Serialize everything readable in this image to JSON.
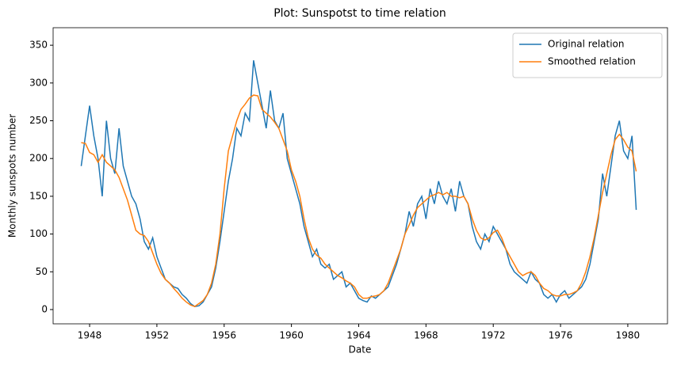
{
  "chart_data": {
    "type": "line",
    "title": "Plot: Sunspotst to time relation",
    "x_label": "Date",
    "y_label": "Monthly sunspots number",
    "x": [
      1947.5,
      1947.75,
      1948,
      1948.25,
      1948.5,
      1948.75,
      1949,
      1949.25,
      1949.5,
      1949.75,
      1950,
      1950.25,
      1950.5,
      1950.75,
      1951,
      1951.25,
      1951.5,
      1951.75,
      1952,
      1952.25,
      1952.5,
      1952.75,
      1953,
      1953.25,
      1953.5,
      1953.75,
      1954,
      1954.25,
      1954.5,
      1954.75,
      1955,
      1955.25,
      1955.5,
      1955.75,
      1956,
      1956.25,
      1956.5,
      1956.75,
      1957,
      1957.25,
      1957.5,
      1957.75,
      1958,
      1958.25,
      1958.5,
      1958.75,
      1959,
      1959.25,
      1959.5,
      1959.75,
      1960,
      1960.25,
      1960.5,
      1960.75,
      1961,
      1961.25,
      1961.5,
      1961.75,
      1962,
      1962.25,
      1962.5,
      1962.75,
      1963,
      1963.25,
      1963.5,
      1963.75,
      1964,
      1964.25,
      1964.5,
      1964.75,
      1965,
      1965.25,
      1965.5,
      1965.75,
      1966,
      1966.25,
      1966.5,
      1966.75,
      1967,
      1967.25,
      1967.5,
      1967.75,
      1968,
      1968.25,
      1968.5,
      1968.75,
      1969,
      1969.25,
      1969.5,
      1969.75,
      1970,
      1970.25,
      1970.5,
      1970.75,
      1971,
      1971.25,
      1971.5,
      1971.75,
      1972,
      1972.25,
      1972.5,
      1972.75,
      1973,
      1973.25,
      1973.5,
      1973.75,
      1974,
      1974.25,
      1974.5,
      1974.75,
      1975,
      1975.25,
      1975.5,
      1975.75,
      1976,
      1976.25,
      1976.5,
      1976.75,
      1977,
      1977.25,
      1977.5,
      1977.75,
      1978,
      1978.25,
      1978.5,
      1978.75,
      1979,
      1979.25,
      1979.5,
      1979.75,
      1980,
      1980.25,
      1980.5
    ],
    "series": [
      {
        "name": "Original relation",
        "color": "#1f77b4",
        "values": [
          190,
          230,
          270,
          230,
          200,
          150,
          250,
          200,
          180,
          240,
          190,
          170,
          150,
          140,
          120,
          90,
          80,
          95,
          70,
          55,
          40,
          35,
          30,
          28,
          20,
          15,
          8,
          4,
          5,
          10,
          20,
          30,
          55,
          90,
          130,
          170,
          200,
          240,
          230,
          260,
          250,
          330,
          300,
          270,
          240,
          290,
          250,
          240,
          260,
          200,
          180,
          160,
          140,
          110,
          90,
          70,
          80,
          60,
          55,
          60,
          40,
          45,
          50,
          30,
          35,
          25,
          15,
          12,
          10,
          18,
          15,
          20,
          25,
          30,
          45,
          60,
          80,
          100,
          130,
          110,
          140,
          150,
          120,
          160,
          140,
          170,
          150,
          140,
          160,
          130,
          170,
          150,
          140,
          110,
          90,
          80,
          100,
          90,
          110,
          100,
          90,
          80,
          60,
          50,
          45,
          40,
          35,
          50,
          40,
          35,
          20,
          15,
          20,
          10,
          20,
          25,
          15,
          20,
          25,
          30,
          40,
          60,
          90,
          120,
          180,
          150,
          190,
          230,
          250,
          210,
          200,
          230,
          132
        ]
      },
      {
        "name": "Smoothed relation",
        "color": "#ff7f0e",
        "values": [
          221,
          220,
          208,
          205,
          195,
          205,
          195,
          190,
          185,
          175,
          160,
          145,
          125,
          105,
          100,
          98,
          90,
          75,
          60,
          48,
          40,
          35,
          28,
          22,
          15,
          10,
          6,
          4,
          8,
          12,
          20,
          35,
          60,
          100,
          160,
          210,
          230,
          250,
          265,
          272,
          280,
          284,
          283,
          265,
          260,
          255,
          248,
          240,
          225,
          210,
          185,
          170,
          150,
          120,
          95,
          80,
          72,
          68,
          60,
          55,
          50,
          45,
          42,
          38,
          35,
          30,
          20,
          15,
          15,
          17,
          18,
          20,
          25,
          35,
          50,
          65,
          80,
          100,
          112,
          125,
          135,
          140,
          145,
          150,
          152,
          155,
          152,
          155,
          150,
          150,
          148,
          150,
          140,
          120,
          105,
          95,
          92,
          95,
          102,
          105,
          95,
          80,
          70,
          60,
          50,
          45,
          48,
          50,
          45,
          35,
          28,
          25,
          20,
          18,
          18,
          20,
          20,
          22,
          25,
          35,
          50,
          70,
          95,
          125,
          155,
          180,
          205,
          225,
          232,
          225,
          215,
          210,
          183
        ]
      }
    ],
    "xlim": [
      1945.83,
      1982.36
    ],
    "xticks": [
      1948,
      1952,
      1956,
      1960,
      1964,
      1968,
      1972,
      1976,
      1980
    ],
    "ylim": [
      -18.9,
      373.2
    ],
    "yticks": [
      0,
      50,
      100,
      150,
      200,
      250,
      300,
      350
    ],
    "legend": "upper right"
  }
}
